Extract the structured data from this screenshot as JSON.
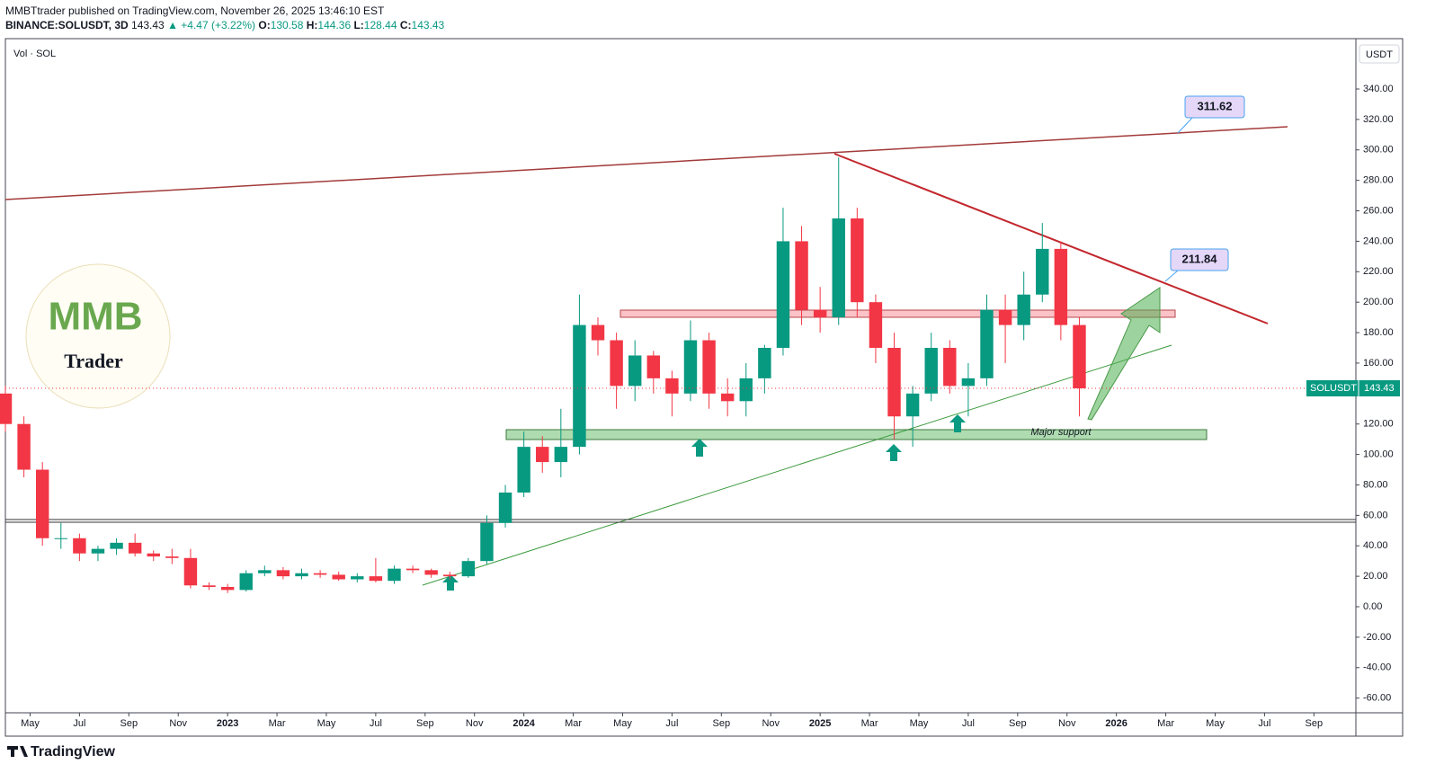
{
  "header": {
    "publisher": "MMBTtrader published on TradingView.com, November 26, 2025 13:46:10 EST",
    "symbol": "BINANCE:SOLUSDT, 3D",
    "last": "143.43",
    "change": "▲ +4.47 (+3.22%)",
    "o_label": "O:",
    "o": "130.58",
    "h_label": "H:",
    "h": "144.36",
    "l_label": "L:",
    "l": "128.44",
    "c_label": "C:",
    "c": "143.43"
  },
  "logo": {
    "brand": "MMB",
    "tagline": "Trader"
  },
  "annotations": {
    "upper_target": "311.62",
    "lower_target": "211.84",
    "support": "Major support"
  },
  "footer": "TradingView",
  "chart_data": {
    "type": "candlestick",
    "pane_label": "Vol · SOL",
    "currency": "USDT",
    "symbol": "SOLUSDT",
    "up_color": "#089981",
    "down_color": "#f23645",
    "grid": false,
    "x": [
      3,
      3.75,
      4.5,
      5.25,
      6,
      6.75,
      7.5,
      8.25,
      9,
      9.75,
      10.5,
      11.25,
      12,
      12.75,
      13.5,
      14.25,
      15,
      15.75,
      16.5,
      17.25,
      18,
      18.75,
      19.5,
      20.25,
      21,
      21.75,
      22.5,
      23.25,
      24,
      24.75,
      25.5,
      26.25,
      27,
      27.75,
      28.5,
      29.25,
      30,
      30.75,
      31.5,
      32.25,
      33,
      33.75,
      34.5,
      35.25,
      36,
      36.75,
      37.5,
      38.25,
      39,
      39.75,
      40.5,
      41.25,
      42,
      42.75,
      43.5,
      44.25,
      45,
      45.75,
      46.5
    ],
    "open": [
      140,
      120,
      90,
      45,
      45,
      35,
      38,
      42,
      35,
      33,
      32,
      14,
      13,
      11,
      22,
      24,
      20,
      22,
      21,
      18,
      20,
      17,
      25,
      24,
      21,
      20,
      30,
      55,
      75,
      105,
      95,
      105,
      185,
      175,
      145,
      165,
      150,
      140,
      175,
      140,
      135,
      150,
      170,
      240,
      195,
      190,
      255,
      200,
      170,
      125,
      140,
      170,
      145,
      150,
      195,
      185,
      205,
      235,
      185
    ],
    "high": [
      145,
      125,
      95,
      55,
      48,
      40,
      45,
      48,
      37,
      38,
      38,
      16,
      15,
      24,
      27,
      26,
      25,
      24,
      23,
      22,
      32,
      27,
      27,
      25,
      23,
      32,
      60,
      80,
      115,
      112,
      130,
      205,
      190,
      180,
      175,
      168,
      155,
      188,
      180,
      150,
      160,
      172,
      262,
      250,
      210,
      295,
      262,
      205,
      180,
      145,
      180,
      175,
      160,
      205,
      205,
      220,
      252,
      240,
      190
    ],
    "low": [
      115,
      85,
      40,
      38,
      30,
      30,
      34,
      33,
      30,
      28,
      12,
      11,
      9,
      10,
      20,
      18,
      18,
      19,
      17,
      16,
      16,
      15,
      22,
      19,
      18,
      19,
      28,
      52,
      72,
      88,
      85,
      100,
      165,
      130,
      135,
      140,
      125,
      135,
      130,
      125,
      125,
      140,
      165,
      185,
      180,
      185,
      190,
      160,
      110,
      105,
      135,
      140,
      125,
      145,
      160,
      175,
      200,
      175,
      125
    ],
    "close": [
      120,
      90,
      45,
      45,
      35,
      38,
      42,
      35,
      33,
      32,
      14,
      13,
      11,
      22,
      24,
      20,
      22,
      21,
      18,
      20,
      17,
      25,
      24,
      21,
      20,
      30,
      55,
      75,
      105,
      95,
      105,
      185,
      175,
      145,
      165,
      150,
      140,
      175,
      140,
      135,
      150,
      170,
      240,
      195,
      190,
      255,
      200,
      170,
      125,
      140,
      170,
      145,
      150,
      195,
      185,
      205,
      235,
      185,
      143.43
    ],
    "xlim": [
      3.0,
      57.7
    ],
    "ylim": [
      -69.65,
      373.06
    ],
    "xticks": [
      {
        "value": 4,
        "label": "May"
      },
      {
        "value": 6,
        "label": "Jul"
      },
      {
        "value": 8,
        "label": "Sep"
      },
      {
        "value": 10,
        "label": "Nov"
      },
      {
        "value": 12,
        "label": "2023"
      },
      {
        "value": 14,
        "label": "Mar"
      },
      {
        "value": 16,
        "label": "May"
      },
      {
        "value": 18,
        "label": "Jul"
      },
      {
        "value": 20,
        "label": "Sep"
      },
      {
        "value": 22,
        "label": "Nov"
      },
      {
        "value": 24,
        "label": "2024"
      },
      {
        "value": 26,
        "label": "Mar"
      },
      {
        "value": 28,
        "label": "May"
      },
      {
        "value": 30,
        "label": "Jul"
      },
      {
        "value": 32,
        "label": "Sep"
      },
      {
        "value": 34,
        "label": "Nov"
      },
      {
        "value": 36,
        "label": "2025"
      },
      {
        "value": 38,
        "label": "Mar"
      },
      {
        "value": 40,
        "label": "May"
      },
      {
        "value": 42,
        "label": "Jul"
      },
      {
        "value": 44,
        "label": "Sep"
      },
      {
        "value": 46,
        "label": "Nov"
      },
      {
        "value": 48,
        "label": "2026"
      },
      {
        "value": 50,
        "label": "Mar"
      },
      {
        "value": 52,
        "label": "May"
      },
      {
        "value": 54,
        "label": "Jul"
      },
      {
        "value": 56,
        "label": "Sep"
      }
    ],
    "yticks": [
      {
        "value": 340,
        "label": "340.00"
      },
      {
        "value": 320,
        "label": "320.00"
      },
      {
        "value": 300,
        "label": "300.00"
      },
      {
        "value": 280,
        "label": "280.00"
      },
      {
        "value": 260,
        "label": "260.00"
      },
      {
        "value": 240,
        "label": "240.00"
      },
      {
        "value": 220,
        "label": "220.00"
      },
      {
        "value": 200,
        "label": "200.00"
      },
      {
        "value": 180,
        "label": "180.00"
      },
      {
        "value": 160,
        "label": "160.00"
      },
      {
        "value": 140,
        "label": "140.00"
      },
      {
        "value": 120,
        "label": "120.00"
      },
      {
        "value": 100,
        "label": "100.00"
      },
      {
        "value": 80,
        "label": "80.00"
      },
      {
        "value": 60,
        "label": "60.00"
      },
      {
        "value": 40,
        "label": "40.00"
      },
      {
        "value": 20,
        "label": "20.00"
      },
      {
        "value": 0,
        "label": "0.00"
      },
      {
        "value": -20,
        "label": "-20.00"
      },
      {
        "value": -40,
        "label": "-40.00"
      },
      {
        "value": -60,
        "label": "-60.00"
      }
    ]
  }
}
